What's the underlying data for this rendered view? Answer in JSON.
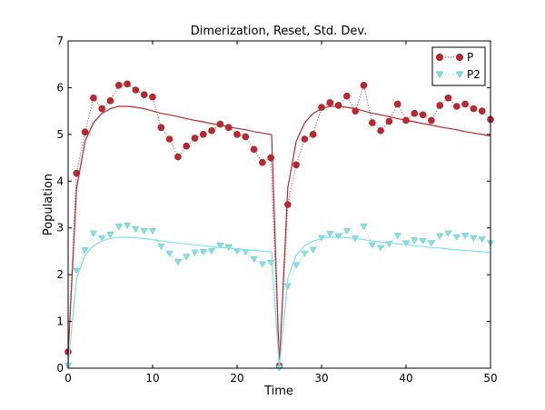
{
  "chart_data": {
    "type": "line",
    "title": "Dimerization, Reset, Std. Dev.",
    "xlabel": "Time",
    "ylabel": "Population",
    "xlim": [
      0,
      50
    ],
    "ylim": [
      0,
      7
    ],
    "xticks": [
      "0",
      "10",
      "20",
      "30",
      "40",
      "50"
    ],
    "yticks": [
      "0",
      "1",
      "2",
      "3",
      "4",
      "5",
      "6",
      "7"
    ],
    "grid": false,
    "legend_position": "top-right",
    "colors": {
      "P": "#c0272d",
      "P2": "#7fe3e8"
    },
    "series": [
      {
        "name": "P",
        "marker": "circle",
        "style": "dotted",
        "x": [
          0,
          1,
          2,
          3,
          4,
          5,
          6,
          7,
          8,
          9,
          10,
          11,
          12,
          13,
          14,
          15,
          16,
          17,
          18,
          19,
          20,
          21,
          22,
          23,
          24,
          25,
          26,
          27,
          28,
          29,
          30,
          31,
          32,
          33,
          34,
          35,
          36,
          37,
          38,
          39,
          40,
          41,
          42,
          43,
          44,
          45,
          46,
          47,
          48,
          49,
          50
        ],
        "values": [
          0.35,
          4.17,
          5.05,
          5.78,
          5.55,
          5.72,
          6.05,
          6.08,
          5.95,
          5.85,
          5.8,
          5.15,
          4.9,
          4.52,
          4.75,
          4.92,
          5.0,
          5.08,
          5.22,
          5.15,
          5.0,
          4.95,
          4.68,
          4.4,
          4.5,
          0.05,
          3.5,
          4.35,
          4.9,
          5.0,
          5.58,
          5.68,
          5.62,
          5.82,
          5.5,
          6.05,
          5.25,
          5.08,
          5.28,
          5.65,
          5.3,
          5.45,
          5.42,
          5.3,
          5.62,
          5.78,
          5.6,
          5.65,
          5.55,
          5.5,
          5.32
        ]
      },
      {
        "name": "P2",
        "marker": "triangle-down",
        "style": "dotted",
        "x": [
          0,
          1,
          2,
          3,
          4,
          5,
          6,
          7,
          8,
          9,
          10,
          11,
          12,
          13,
          14,
          15,
          16,
          17,
          18,
          19,
          20,
          21,
          22,
          23,
          24,
          25,
          26,
          27,
          28,
          29,
          30,
          31,
          32,
          33,
          34,
          35,
          36,
          37,
          38,
          39,
          40,
          41,
          42,
          43,
          44,
          45,
          46,
          47,
          48,
          49,
          50
        ],
        "values": [
          0.05,
          2.08,
          2.52,
          2.88,
          2.78,
          2.85,
          3.02,
          3.05,
          2.97,
          2.93,
          2.93,
          2.6,
          2.45,
          2.27,
          2.38,
          2.47,
          2.48,
          2.5,
          2.62,
          2.58,
          2.5,
          2.48,
          2.33,
          2.22,
          2.25,
          0.0,
          1.75,
          2.2,
          2.45,
          2.53,
          2.78,
          2.87,
          2.82,
          2.93,
          2.77,
          3.03,
          2.63,
          2.57,
          2.65,
          2.83,
          2.67,
          2.73,
          2.72,
          2.67,
          2.82,
          2.88,
          2.8,
          2.83,
          2.78,
          2.75,
          2.67
        ]
      },
      {
        "name": "",
        "legend": false,
        "style": "solid",
        "color_key": "P",
        "x": [
          0,
          1,
          2,
          3,
          4,
          5,
          6,
          7,
          8,
          9,
          10,
          11,
          12,
          13,
          14,
          15,
          16,
          17,
          18,
          19,
          20,
          21,
          22,
          23,
          24,
          24.1,
          25,
          26,
          27,
          28,
          29,
          30,
          31,
          32,
          33,
          34,
          35,
          36,
          37,
          38,
          39,
          40,
          41,
          42,
          43,
          44,
          45,
          46,
          47,
          48,
          49,
          50
        ],
        "values": [
          0.3,
          3.85,
          4.85,
          5.25,
          5.45,
          5.55,
          5.6,
          5.6,
          5.58,
          5.55,
          5.5,
          5.45,
          5.42,
          5.38,
          5.34,
          5.3,
          5.27,
          5.23,
          5.2,
          5.16,
          5.13,
          5.1,
          5.06,
          5.03,
          5.0,
          4.98,
          0.05,
          3.85,
          4.85,
          5.25,
          5.45,
          5.55,
          5.6,
          5.6,
          5.58,
          5.55,
          5.5,
          5.45,
          5.42,
          5.38,
          5.34,
          5.3,
          5.27,
          5.23,
          5.2,
          5.16,
          5.13,
          5.1,
          5.06,
          5.03,
          5.0,
          4.97
        ]
      },
      {
        "name": "",
        "legend": false,
        "style": "solid",
        "color_key": "P2",
        "x": [
          0,
          1,
          2,
          3,
          4,
          5,
          6,
          7,
          8,
          9,
          10,
          11,
          12,
          13,
          14,
          15,
          16,
          17,
          18,
          19,
          20,
          21,
          22,
          23,
          24,
          24.1,
          25,
          26,
          27,
          28,
          29,
          30,
          31,
          32,
          33,
          34,
          35,
          36,
          37,
          38,
          39,
          40,
          41,
          42,
          43,
          44,
          45,
          46,
          47,
          48,
          49,
          50
        ],
        "values": [
          0.05,
          1.92,
          2.42,
          2.62,
          2.72,
          2.77,
          2.8,
          2.8,
          2.79,
          2.77,
          2.75,
          2.72,
          2.7,
          2.68,
          2.66,
          2.64,
          2.62,
          2.6,
          2.58,
          2.57,
          2.55,
          2.53,
          2.52,
          2.5,
          2.49,
          2.48,
          0.0,
          1.92,
          2.42,
          2.62,
          2.72,
          2.77,
          2.8,
          2.8,
          2.79,
          2.77,
          2.75,
          2.72,
          2.7,
          2.68,
          2.66,
          2.64,
          2.62,
          2.6,
          2.58,
          2.57,
          2.55,
          2.53,
          2.52,
          2.5,
          2.49,
          2.48
        ]
      }
    ]
  }
}
